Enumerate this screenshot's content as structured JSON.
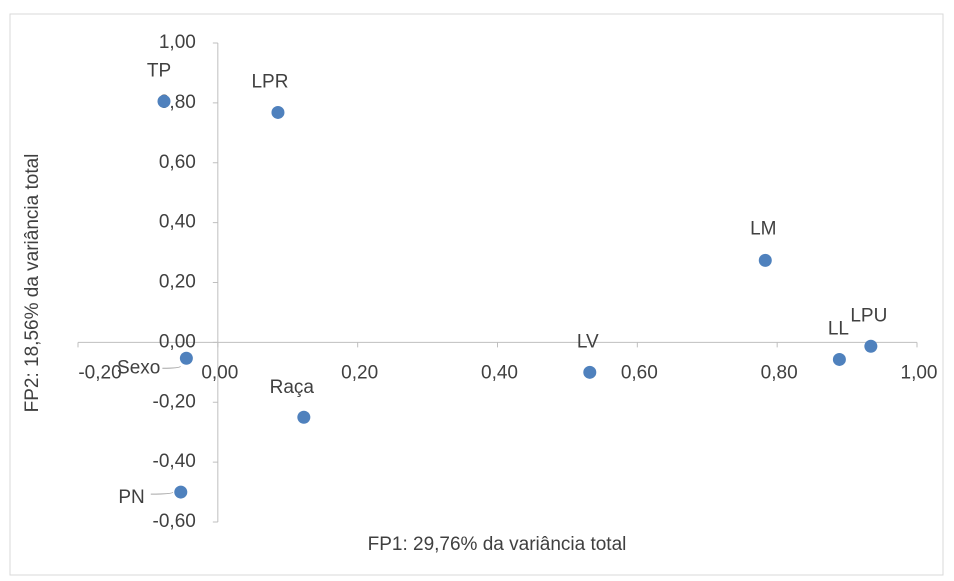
{
  "chart_data": {
    "type": "scatter",
    "x_label": "FP1: 29,76% da variância total",
    "y_label": "FP2: 18,56% da variância total",
    "labels": [
      "TP",
      "LPR",
      "LM",
      "LPU",
      "LL",
      "LV",
      "Sexo",
      "Raça",
      "PN"
    ],
    "x": [
      -0.077,
      0.086,
      0.783,
      0.934,
      0.889,
      0.532,
      -0.045,
      0.123,
      -0.053
    ],
    "y": [
      0.805,
      0.768,
      0.274,
      -0.013,
      -0.057,
      -0.1,
      -0.053,
      -0.25,
      -0.5
    ],
    "color": "#4f81bd",
    "xlim": [
      -0.2,
      1.0
    ],
    "xticks": [
      {
        "value": -0.2,
        "label": "-0,20"
      },
      {
        "value": 0,
        "label": "0,00"
      },
      {
        "value": 0.2,
        "label": "0,20"
      },
      {
        "value": 0.4,
        "label": "0,40"
      },
      {
        "value": 0.6,
        "label": "0,60"
      },
      {
        "value": 0.8,
        "label": "0,80"
      },
      {
        "value": 1.0,
        "label": "1,00"
      }
    ],
    "ylim": [
      -0.6,
      1.0
    ],
    "yticks": [
      {
        "value": -0.6,
        "label": "-0,60"
      },
      {
        "value": -0.4,
        "label": "-0,40"
      },
      {
        "value": -0.2,
        "label": "-0,20"
      },
      {
        "value": 0,
        "label": "0,00"
      },
      {
        "value": 0.2,
        "label": "0,20"
      },
      {
        "value": 0.4,
        "label": "0,40"
      },
      {
        "value": 0.6,
        "label": "0,60"
      },
      {
        "value": 0.8,
        "label": "0,80"
      },
      {
        "value": 1.0,
        "label": "1,00"
      }
    ]
  }
}
